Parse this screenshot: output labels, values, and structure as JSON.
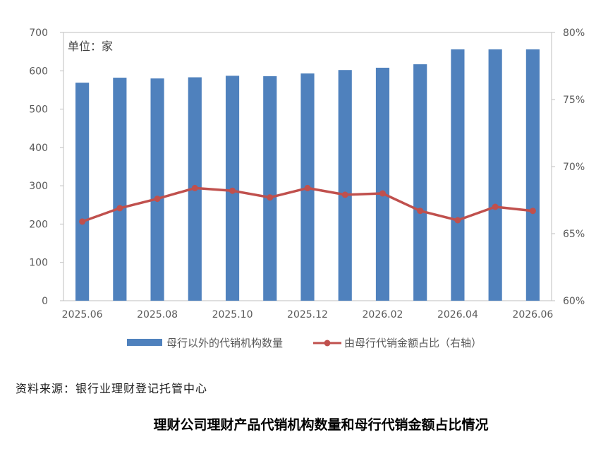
{
  "chart_data": {
    "type": "bar",
    "unit_label": "单位：家",
    "x": [
      "2025.06",
      "2025.07",
      "2025.08",
      "2025.09",
      "2025.10",
      "2025.11",
      "2025.12",
      "2026.01",
      "2026.02",
      "2026.03",
      "2026.04",
      "2026.05",
      "2026.06"
    ],
    "x_tick_labels": [
      "2025.06",
      "2025.08",
      "2025.10",
      "2025.12",
      "2026.02",
      "2026.04",
      "2026.06"
    ],
    "series": [
      {
        "name": "母行以外的代销机构数量",
        "type": "bar",
        "axis": "left",
        "color": "#4F81BD",
        "values": [
          569,
          582,
          580,
          583,
          587,
          586,
          593,
          602,
          608,
          617,
          656,
          656,
          656
        ]
      },
      {
        "name": "由母行代销金额占比（右轴）",
        "type": "line",
        "axis": "right",
        "color": "#C0504D",
        "values": [
          65.9,
          66.9,
          67.6,
          68.4,
          68.2,
          67.7,
          68.4,
          67.9,
          68.0,
          66.7,
          66.0,
          67.0,
          66.7
        ]
      }
    ],
    "y_left": {
      "min": 0,
      "max": 700,
      "step": 100,
      "ticks": [
        "0",
        "100",
        "200",
        "300",
        "400",
        "500",
        "600",
        "700"
      ]
    },
    "y_right": {
      "min": 60,
      "max": 80,
      "step": 5,
      "ticks": [
        "60%",
        "65%",
        "70%",
        "75%",
        "80%"
      ]
    },
    "grid": false,
    "legend_position": "bottom"
  },
  "source": "资料来源：银行业理财登记托管中心",
  "caption": "理财公司理财产品代销机构数量和母行代销金额占比情况"
}
